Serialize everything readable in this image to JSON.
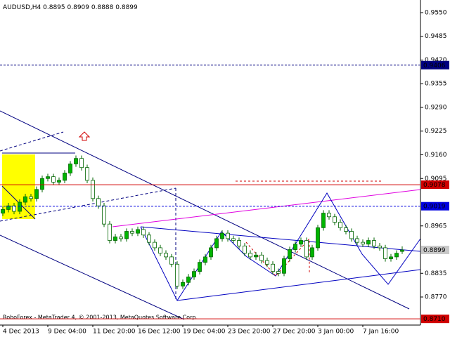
{
  "chart_data": {
    "type": "candlestick",
    "symbol": "AUDUSD,H4",
    "footer": "RoboForex - MetaTrader 4, © 2001-2013, MetaQuotes Software Corp.",
    "categories": [
      "4 Dec 2013",
      null,
      null,
      null,
      null,
      null,
      null,
      null,
      "9 Dec 04:00",
      null,
      null,
      null,
      null,
      null,
      null,
      null,
      "11 Dec 20:00",
      null,
      null,
      null,
      null,
      null,
      null,
      null,
      "16 Dec 12:00",
      null,
      null,
      null,
      null,
      null,
      null,
      null,
      "19 Dec 04:00",
      null,
      null,
      null,
      null,
      null,
      null,
      null,
      "23 Dec 20:00",
      null,
      null,
      null,
      null,
      null,
      null,
      null,
      "27 Dec 20:00",
      null,
      null,
      null,
      null,
      null,
      null,
      null,
      "3 Jan 00:00",
      null,
      null,
      null,
      null,
      null,
      null,
      null,
      "7 Jan 16:00",
      null,
      null,
      null,
      null,
      null,
      null,
      null
    ],
    "open": [
      0.9,
      0.901,
      0.902,
      0.9005,
      0.903,
      0.9045,
      0.904,
      0.9065,
      0.9095,
      0.91,
      0.9085,
      0.909,
      0.911,
      0.9135,
      0.915,
      0.9125,
      0.909,
      0.904,
      0.902,
      0.897,
      0.8925,
      0.8935,
      0.893,
      0.895,
      0.8945,
      0.8955,
      0.894,
      0.892,
      0.8905,
      0.889,
      0.888,
      0.886,
      0.88,
      0.881,
      0.8825,
      0.884,
      0.8865,
      0.888,
      0.8905,
      0.893,
      0.8945,
      0.893,
      0.8925,
      0.891,
      0.889,
      0.888,
      0.8885,
      0.887,
      0.886,
      0.884,
      0.8835,
      0.8875,
      0.89,
      0.8915,
      0.8925,
      0.888,
      0.8905,
      0.896,
      0.9,
      0.899,
      0.8975,
      0.896,
      0.895,
      0.893,
      0.892,
      0.8915,
      0.8925,
      0.891,
      0.8905,
      0.8875,
      0.888,
      0.8895
    ],
    "high": [
      0.9018,
      0.9028,
      0.9028,
      0.9038,
      0.9053,
      0.9053,
      0.9073,
      0.9103,
      0.9108,
      0.9108,
      0.9098,
      0.9118,
      0.9143,
      0.9158,
      0.9158,
      0.9133,
      0.9098,
      0.9048,
      0.9028,
      0.8978,
      0.8943,
      0.8943,
      0.8958,
      0.8958,
      0.8963,
      0.8963,
      0.8948,
      0.8928,
      0.8913,
      0.8898,
      0.8888,
      0.8868,
      0.8818,
      0.8833,
      0.8848,
      0.8873,
      0.8888,
      0.8913,
      0.8938,
      0.8953,
      0.8953,
      0.8938,
      0.8933,
      0.8918,
      0.8898,
      0.8893,
      0.8893,
      0.8878,
      0.8868,
      0.8848,
      0.8883,
      0.8908,
      0.8923,
      0.8933,
      0.8933,
      0.8913,
      0.8968,
      0.9008,
      0.9008,
      0.8998,
      0.8983,
      0.8968,
      0.8958,
      0.8938,
      0.8928,
      0.8933,
      0.8933,
      0.8918,
      0.8913,
      0.8888,
      0.8898,
      0.8909
    ],
    "low": [
      0.8992,
      0.9002,
      0.8997,
      0.8997,
      0.9022,
      0.9032,
      0.9032,
      0.9057,
      0.9087,
      0.9077,
      0.9077,
      0.9082,
      0.9102,
      0.9127,
      0.9117,
      0.9082,
      0.9032,
      0.9012,
      0.8962,
      0.8917,
      0.8917,
      0.8922,
      0.8922,
      0.8937,
      0.8937,
      0.8932,
      0.8912,
      0.8897,
      0.8882,
      0.8872,
      0.8852,
      0.8792,
      0.8792,
      0.8802,
      0.8817,
      0.8832,
      0.8857,
      0.8872,
      0.8897,
      0.8922,
      0.8922,
      0.8917,
      0.8902,
      0.8882,
      0.8872,
      0.8872,
      0.8862,
      0.8852,
      0.8832,
      0.8827,
      0.8827,
      0.8867,
      0.8892,
      0.8907,
      0.8872,
      0.8872,
      0.8897,
      0.8952,
      0.8982,
      0.8967,
      0.8952,
      0.8942,
      0.8922,
      0.8912,
      0.8907,
      0.8907,
      0.8902,
      0.8897,
      0.8867,
      0.8867,
      0.8872,
      0.8888
    ],
    "close": [
      0.901,
      0.902,
      0.9005,
      0.903,
      0.9045,
      0.904,
      0.9065,
      0.9095,
      0.91,
      0.9085,
      0.909,
      0.911,
      0.9135,
      0.915,
      0.9125,
      0.909,
      0.904,
      0.902,
      0.897,
      0.8925,
      0.8935,
      0.893,
      0.895,
      0.8945,
      0.8955,
      0.894,
      0.892,
      0.8905,
      0.889,
      0.888,
      0.886,
      0.88,
      0.881,
      0.8825,
      0.884,
      0.8865,
      0.888,
      0.8905,
      0.893,
      0.8945,
      0.893,
      0.8925,
      0.891,
      0.889,
      0.888,
      0.8885,
      0.887,
      0.886,
      0.884,
      0.8835,
      0.8875,
      0.89,
      0.8915,
      0.8925,
      0.888,
      0.8905,
      0.896,
      0.9,
      0.899,
      0.8975,
      0.896,
      0.895,
      0.893,
      0.892,
      0.8915,
      0.8925,
      0.891,
      0.8905,
      0.8875,
      0.888,
      0.889,
      0.8899
    ],
    "up_color": "#00b400",
    "down_color": "#ffffff",
    "wick_color": "#006400",
    "ylim": [
      0.8693,
      0.9575
    ],
    "yticks": [
      {
        "value": 0.955,
        "label": "0.9550"
      },
      0.9485,
      {
        "value": 0.942,
        "label": "0.9420"
      },
      0.9355,
      {
        "value": 0.929,
        "label": "0.9290"
      },
      0.9225,
      {
        "value": 0.916,
        "label": "0.9160"
      },
      0.9095,
      0.8965,
      0.8835,
      {
        "value": 0.877,
        "label": "0.8770"
      }
    ],
    "levels": [
      {
        "value": 0.9406,
        "color": "#000080",
        "dashed": true
      },
      {
        "value": 0.9078,
        "color": "#d00000",
        "dashed": false
      },
      {
        "value": 0.9019,
        "color": "#0000e0",
        "dashed": true
      },
      {
        "value": 0.871,
        "label": "0.8710",
        "color": "#d00000",
        "dashed": false
      }
    ],
    "current_color": "#c8c8c8"
  }
}
